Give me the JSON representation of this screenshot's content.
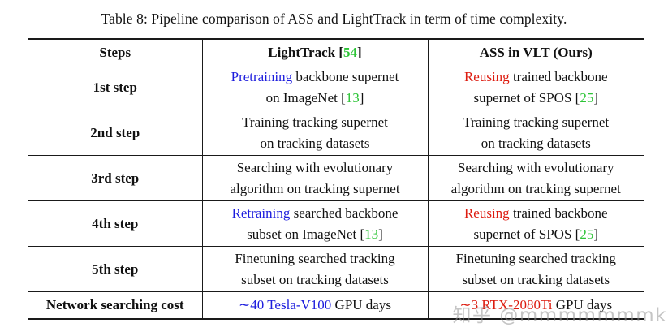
{
  "caption": "Table 8: Pipeline comparison of ASS and LightTrack in term of time complexity.",
  "colors": {
    "blue": "#1c1cdd",
    "red": "#dd1c10",
    "green": "#2cc436",
    "rule": "#1a1a1a",
    "watermark": "#bbbbbb"
  },
  "watermark": "知乎 @mmmmmmmk",
  "table": {
    "headers": [
      {
        "lines": [
          [
            {
              "t": "Steps",
              "b": true
            }
          ]
        ]
      },
      {
        "lines": [
          [
            {
              "t": "LightTrack [",
              "b": true
            },
            {
              "t": "54",
              "b": true,
              "c": "green"
            },
            {
              "t": "]",
              "b": true
            }
          ]
        ]
      },
      {
        "lines": [
          [
            {
              "t": "ASS in VLT",
              "b": true
            },
            {
              "t": " (Ours)"
            }
          ]
        ]
      }
    ],
    "rows": [
      {
        "step": "1st step",
        "cells": [
          {
            "lines": [
              [
                {
                  "t": "Pretraining",
                  "c": "blue"
                },
                {
                  "t": " backbone supernet"
                }
              ],
              [
                {
                  "t": "on ImageNet ["
                },
                {
                  "t": "13",
                  "c": "green"
                },
                {
                  "t": "]"
                }
              ]
            ]
          },
          {
            "lines": [
              [
                {
                  "t": "Reusing",
                  "c": "red"
                },
                {
                  "t": " trained backbone"
                }
              ],
              [
                {
                  "t": "supernet of SPOS ["
                },
                {
                  "t": "25",
                  "c": "green"
                },
                {
                  "t": "]"
                }
              ]
            ]
          }
        ]
      },
      {
        "step": "2nd step",
        "cells": [
          {
            "lines": [
              [
                {
                  "t": "Training tracking supernet"
                }
              ],
              [
                {
                  "t": "on tracking datasets"
                }
              ]
            ]
          },
          {
            "lines": [
              [
                {
                  "t": "Training tracking supernet"
                }
              ],
              [
                {
                  "t": "on tracking datasets"
                }
              ]
            ]
          }
        ]
      },
      {
        "step": "3rd step",
        "cells": [
          {
            "lines": [
              [
                {
                  "t": "Searching with evolutionary"
                }
              ],
              [
                {
                  "t": "algorithm on tracking supernet"
                }
              ]
            ]
          },
          {
            "lines": [
              [
                {
                  "t": "Searching with evolutionary"
                }
              ],
              [
                {
                  "t": "algorithm on tracking supernet"
                }
              ]
            ]
          }
        ]
      },
      {
        "step": "4th step",
        "cells": [
          {
            "lines": [
              [
                {
                  "t": "Retraining",
                  "c": "blue"
                },
                {
                  "t": " searched backbone"
                }
              ],
              [
                {
                  "t": "subset on ImageNet ["
                },
                {
                  "t": "13",
                  "c": "green"
                },
                {
                  "t": "]"
                }
              ]
            ]
          },
          {
            "lines": [
              [
                {
                  "t": "Reusing",
                  "c": "red"
                },
                {
                  "t": " trained backbone"
                }
              ],
              [
                {
                  "t": "supernet of SPOS ["
                },
                {
                  "t": "25",
                  "c": "green"
                },
                {
                  "t": "]"
                }
              ]
            ]
          }
        ]
      },
      {
        "step": "5th step",
        "cells": [
          {
            "lines": [
              [
                {
                  "t": "Finetuning searched tracking"
                }
              ],
              [
                {
                  "t": "subset on tracking datasets"
                }
              ]
            ]
          },
          {
            "lines": [
              [
                {
                  "t": "Finetuning searched tracking"
                }
              ],
              [
                {
                  "t": "subset on tracking datasets"
                }
              ]
            ]
          }
        ]
      },
      {
        "step": "Network searching cost",
        "cells": [
          {
            "lines": [
              [
                {
                  "t": "∼40 Tesla-V100",
                  "c": "blue"
                },
                {
                  "t": " GPU days"
                }
              ]
            ]
          },
          {
            "lines": [
              [
                {
                  "t": "∼3 RTX-2080Ti",
                  "c": "red"
                },
                {
                  "t": " GPU days"
                }
              ]
            ]
          }
        ]
      }
    ]
  }
}
